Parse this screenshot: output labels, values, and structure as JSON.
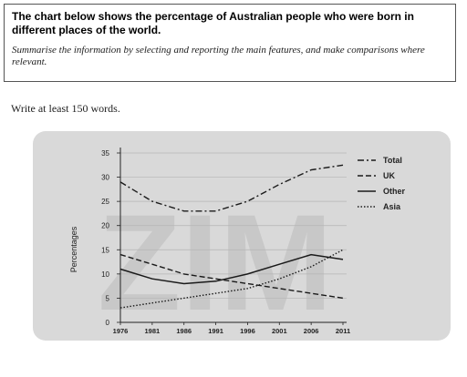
{
  "task": {
    "title": "The chart below shows the percentage of Australian people who were born in different places of the world.",
    "instruction": "Summarise the information by selecting and reporting the main features, and make comparisons where relevant."
  },
  "word_note": "Write at least 150 words.",
  "watermark": "ZIM",
  "chart_data": {
    "type": "line",
    "title": "",
    "xlabel": "",
    "ylabel": "Percentages",
    "x": [
      1976,
      1981,
      1986,
      1991,
      1996,
      2001,
      2006,
      2011
    ],
    "ylim": [
      0,
      35
    ],
    "yticks": [
      0,
      5,
      10,
      15,
      20,
      25,
      30,
      35
    ],
    "grid": true,
    "legend_position": "right",
    "series": [
      {
        "name": "Total",
        "style": "dash-dot",
        "values": [
          29,
          25,
          23,
          23,
          25,
          28.5,
          31.5,
          32.5
        ]
      },
      {
        "name": "UK",
        "style": "dashed",
        "values": [
          14,
          12,
          10,
          9,
          8,
          7,
          6,
          5
        ]
      },
      {
        "name": "Other",
        "style": "solid",
        "values": [
          11,
          9,
          8,
          8.5,
          10,
          12,
          14,
          13
        ]
      },
      {
        "name": "Asia",
        "style": "dotted",
        "values": [
          3,
          4,
          5,
          6,
          7,
          9,
          11.5,
          15
        ]
      }
    ]
  }
}
